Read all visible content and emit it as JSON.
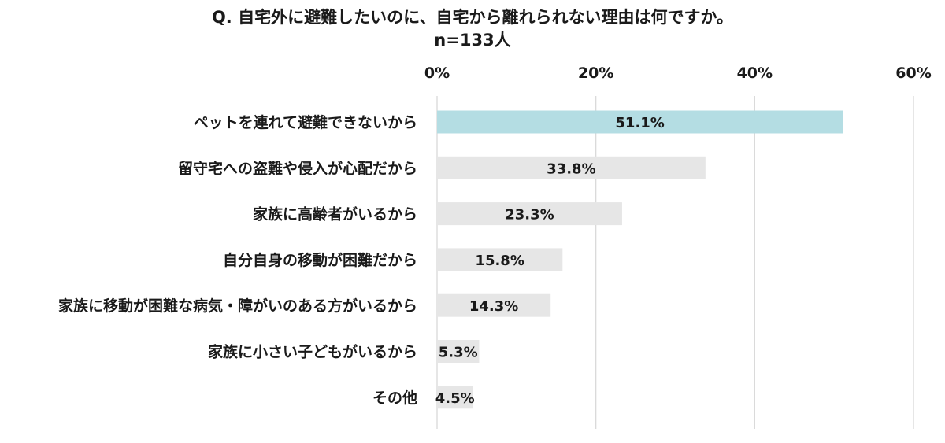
{
  "chart_data": {
    "type": "bar",
    "orientation": "horizontal",
    "title": "Q. 自宅外に避難したいのに、自宅から離れられない理由は何ですか。",
    "subtitle": "n=133人",
    "categories": [
      "ペットを連れて避難できないから",
      "留守宅への盗難や侵入が心配だから",
      "家族に高齢者がいるから",
      "自分自身の移動が困難だから",
      "家族に移動が困難な病気・障がいのある方がいるから",
      "家族に小さい子どもがいるから",
      "その他"
    ],
    "values": [
      51.1,
      33.8,
      23.3,
      15.8,
      14.3,
      5.3,
      4.5
    ],
    "value_labels": [
      "51.1%",
      "33.8%",
      "23.3%",
      "15.8%",
      "14.3%",
      "5.3%",
      "4.5%"
    ],
    "xlim": [
      0,
      60
    ],
    "xticks": [
      0,
      20,
      40,
      60
    ],
    "xtick_labels": [
      "0%",
      "20%",
      "40%",
      "60%"
    ],
    "x_axis_position": "top",
    "grid": true,
    "legend": "none",
    "colors": {
      "highlight_bar": "#b4dde3",
      "bar": "#e6e6e6",
      "grid": "#d9d9d9",
      "text": "#1a1a1a"
    }
  }
}
